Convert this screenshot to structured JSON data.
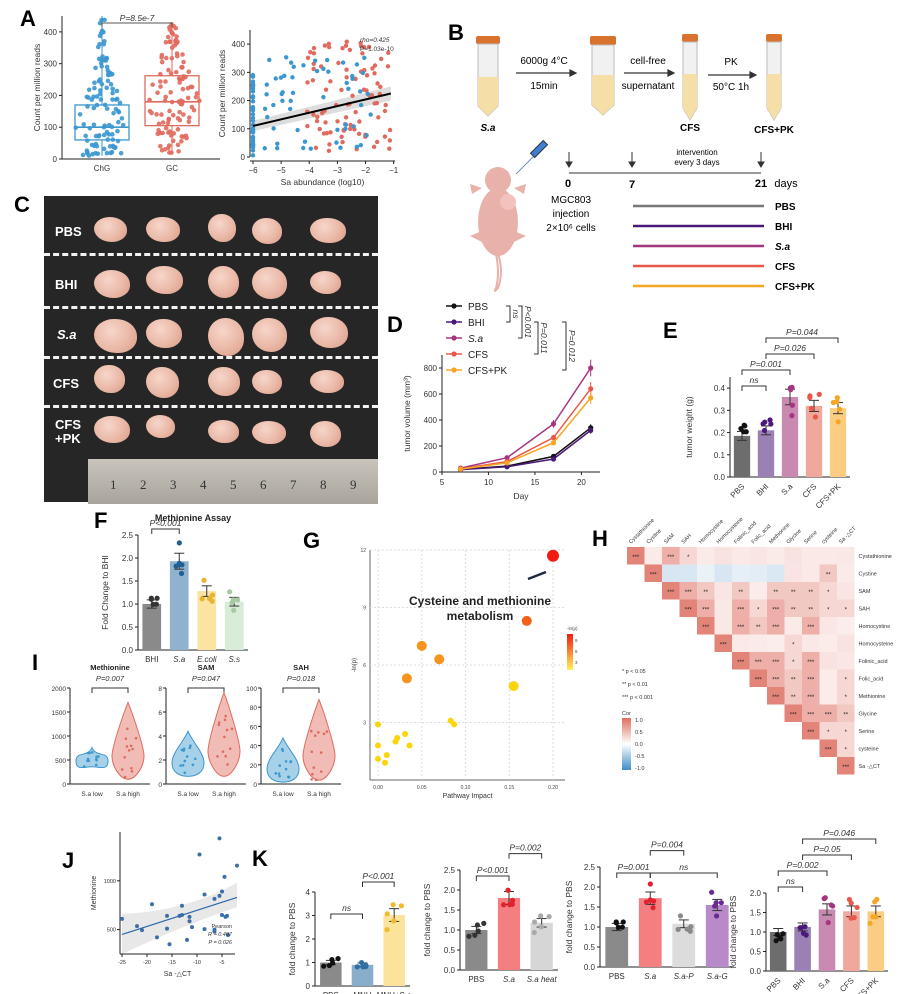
{
  "panels": {
    "A": {
      "label": "A"
    },
    "B": {
      "label": "B"
    },
    "C": {
      "label": "C"
    },
    "D": {
      "label": "D"
    },
    "E": {
      "label": "E"
    },
    "F": {
      "label": "F"
    },
    "G": {
      "label": "G"
    },
    "H": {
      "label": "H"
    },
    "I": {
      "label": "I"
    },
    "J": {
      "label": "J"
    },
    "K": {
      "label": "K"
    }
  },
  "colors": {
    "blue": "#3b97cf",
    "red": "#e06a5d",
    "pbs": "#777777",
    "bhi": "#4b1a78",
    "sa": "#a6357f",
    "cfs": "#e8584a",
    "cfspk": "#f5a623"
  },
  "panelB": {
    "step1": "6000g 4°C",
    "step1b": "15min",
    "step2": "cell-free",
    "step2b": "supernatant",
    "step3": "PK",
    "step3b": "50°C 1h",
    "tube1": "S.a",
    "tube3": "CFS",
    "tube4": "CFS+PK",
    "intervention": "intervention",
    "intervention2": "every 3 days",
    "t0": "0",
    "t7": "7",
    "t21": "21",
    "days": "days",
    "inj1": "MGC803",
    "inj2": "injection",
    "inj3": "2×10⁶ cells",
    "groups": [
      "PBS",
      "BHI",
      "S.a",
      "CFS",
      "CFS+PK"
    ]
  },
  "panelC": {
    "rows": [
      "PBS",
      "BHI",
      "S.a",
      "CFS",
      "CFS\n+PK"
    ],
    "ruler": [
      "1",
      "2",
      "3",
      "4",
      "5",
      "6",
      "7",
      "8",
      "9"
    ]
  },
  "chart_data": [
    {
      "id": "A-left",
      "type": "scatter",
      "title": "",
      "categories": [
        "ChG",
        "GC"
      ],
      "ylabel": "Count per million reads",
      "ylim": [
        0,
        450
      ],
      "yticks": [
        0,
        100,
        200,
        300,
        400
      ],
      "box": [
        {
          "name": "ChG",
          "q1": 60,
          "median": 100,
          "q3": 170,
          "min": 10,
          "max": 450
        },
        {
          "name": "GC",
          "q1": 105,
          "median": 180,
          "q3": 262,
          "min": 20,
          "max": 425
        }
      ],
      "annotation": "P=8.5e-7"
    },
    {
      "id": "A-right",
      "type": "scatter",
      "xlabel": "Sa abundance (log10)",
      "ylabel": "Count per million reads",
      "xlim": [
        -6,
        -1
      ],
      "ylim": [
        0,
        450
      ],
      "xticks": [
        -6,
        -5,
        -4,
        -3,
        -2,
        -1
      ],
      "yticks": [
        0,
        100,
        200,
        300,
        400
      ],
      "fit": {
        "x": [
          -6,
          -1.1
        ],
        "y": [
          110,
          225
        ]
      },
      "annotation": [
        "rho=0.425",
        "P=1.03e-10"
      ]
    },
    {
      "id": "D",
      "type": "line",
      "xlabel": "Day",
      "ylabel": "tumor volume (mm³)",
      "xlim": [
        5,
        22
      ],
      "ylim": [
        0,
        900
      ],
      "xticks": [
        5,
        10,
        15,
        20
      ],
      "yticks": [
        0,
        200,
        400,
        600,
        800
      ],
      "x": [
        7,
        12,
        17,
        21
      ],
      "series": [
        {
          "name": "PBS",
          "values": [
            20,
            45,
            120,
            340
          ],
          "color": "#111111",
          "marker": "circle"
        },
        {
          "name": "BHI",
          "values": [
            18,
            40,
            100,
            320
          ],
          "color": "#4b1a78",
          "marker": "square"
        },
        {
          "name": "S.a",
          "values": [
            30,
            110,
            370,
            800
          ],
          "color": "#a6357f",
          "marker": "triangle-up"
        },
        {
          "name": "CFS",
          "values": [
            25,
            80,
            265,
            640
          ],
          "color": "#e8584a",
          "marker": "triangle-down"
        },
        {
          "name": "CFS+PK",
          "values": [
            22,
            70,
            225,
            570
          ],
          "color": "#f5a623",
          "marker": "diamond"
        }
      ],
      "annotations": [
        "ns",
        "P<0.001",
        "P=0.011",
        "P=0.012"
      ]
    },
    {
      "id": "E",
      "type": "bar",
      "ylabel": "tumor weight (g)",
      "categories": [
        "PBS",
        "BHI",
        "S.a",
        "CFS",
        "CFS+PK"
      ],
      "values": [
        0.185,
        0.21,
        0.36,
        0.32,
        0.31
      ],
      "errors": [
        0.02,
        0.02,
        0.035,
        0.025,
        0.025
      ],
      "ylim": [
        0,
        0.45
      ],
      "yticks": [
        0.0,
        0.1,
        0.2,
        0.3,
        0.4
      ],
      "colors": [
        "#6d6d6d",
        "#9a80b5",
        "#c98ab2",
        "#f0a79c",
        "#fbcd82"
      ],
      "annotations": [
        {
          "text": "ns",
          "from": 0,
          "to": 1
        },
        {
          "text": "P=0.001",
          "from": 0,
          "to": 2
        },
        {
          "text": "P=0.026",
          "from": 1,
          "to": 3
        },
        {
          "text": "P=0.044",
          "from": 1,
          "to": 4
        }
      ]
    },
    {
      "id": "F",
      "type": "bar",
      "title": "Methionine Assay",
      "ylabel": "Fold Change to BHI",
      "categories": [
        "BHI",
        "S.a",
        "E.coli",
        "S.s"
      ],
      "values": [
        1.0,
        1.93,
        1.28,
        1.05
      ],
      "ylim": [
        0,
        2.5
      ],
      "yticks": [
        0.0,
        0.5,
        1.0,
        1.5,
        2.0,
        2.5
      ],
      "colors": [
        "#8a8a8a",
        "#8fb3cf",
        "#fbe3a2",
        "#d9ecd8"
      ],
      "annotations": [
        {
          "text": "P<0.001",
          "from": 0,
          "to": 1
        }
      ]
    },
    {
      "id": "G",
      "type": "scatter",
      "title": "",
      "xlabel": "Pathway Impact",
      "ylabel": "-ln(p)",
      "xlim": [
        0,
        0.2
      ],
      "ylim": [
        0,
        12
      ],
      "xticks": [
        0.0,
        0.05,
        0.1,
        0.15,
        0.2
      ],
      "yticks": [
        3,
        6,
        9,
        12
      ],
      "points": [
        {
          "x": 0.2,
          "y": 11.7,
          "size": 3
        },
        {
          "x": 0.17,
          "y": 8.3,
          "size": 2
        },
        {
          "x": 0.05,
          "y": 7.0,
          "size": 2
        },
        {
          "x": 0.07,
          "y": 6.3,
          "size": 2
        },
        {
          "x": 0.033,
          "y": 5.3,
          "size": 2
        },
        {
          "x": 0.155,
          "y": 4.9,
          "size": 2
        },
        {
          "x": 0.083,
          "y": 3.1,
          "size": 1
        },
        {
          "x": 0.087,
          "y": 2.9,
          "size": 1
        },
        {
          "x": 0.0,
          "y": 2.9,
          "size": 1
        },
        {
          "x": 0.0,
          "y": 1.8,
          "size": 1
        },
        {
          "x": 0.0,
          "y": 1.1,
          "size": 1
        },
        {
          "x": 0.01,
          "y": 1.3,
          "size": 1
        },
        {
          "x": 0.008,
          "y": 0.9,
          "size": 1
        },
        {
          "x": 0.02,
          "y": 2.0,
          "size": 1
        },
        {
          "x": 0.022,
          "y": 2.2,
          "size": 1
        },
        {
          "x": 0.031,
          "y": 2.4,
          "size": 1
        },
        {
          "x": 0.036,
          "y": 1.8,
          "size": 1
        }
      ],
      "annotation": "Cysteine and methionine metabolism",
      "legend_title": "-ln(p)",
      "legend_ticks": [
        "9",
        "6",
        "3"
      ]
    },
    {
      "id": "H",
      "type": "heatmap",
      "variables": [
        "Cystathionine",
        "Cystine",
        "SAM",
        "SAH",
        "Homocystine",
        "Homocysteine",
        "Folinic_acid",
        "Folic_acid",
        "Methionine",
        "Glycine",
        "Serine",
        "cysteine",
        "Sa -△CT"
      ],
      "legend": [
        "* p < 0.05",
        "** p < 0.01",
        "*** p < 0.001"
      ],
      "colorbar_title": "Cor",
      "colorbar_ticks": [
        "1.0",
        "0.5",
        "0.0",
        "-0.5",
        "-1.0"
      ]
    },
    {
      "id": "I",
      "type": "scatter",
      "subplots": [
        {
          "title": "Methionine",
          "p": "P=0.007",
          "ylim": [
            0,
            2000
          ],
          "yticks": [
            0,
            500,
            1000,
            1500,
            2000
          ],
          "categories": [
            "S.a low",
            "S.a high"
          ]
        },
        {
          "title": "SAM",
          "p": "P=0.047",
          "ylim": [
            0,
            8
          ],
          "yticks": [
            0,
            2,
            4,
            6,
            8
          ],
          "categories": [
            "S.a low",
            "S.a high"
          ]
        },
        {
          "title": "SAH",
          "p": "P=0.018",
          "ylim": [
            0,
            100
          ],
          "yticks": [
            0,
            20,
            40,
            60,
            80,
            100
          ],
          "categories": [
            "S.a low",
            "S.a high"
          ]
        }
      ]
    },
    {
      "id": "J",
      "type": "scatter",
      "xlabel": "Sa -△CT",
      "ylabel": "Methionine",
      "xlim": [
        -25,
        -2
      ],
      "xticks": [
        -25,
        -20,
        -15,
        -10,
        -5
      ],
      "yticks": [
        500,
        1000
      ],
      "points": [
        [
          -25,
          610
        ],
        [
          -22,
          535
        ],
        [
          -21,
          495
        ],
        [
          -19,
          760
        ],
        [
          -18,
          420
        ],
        [
          -16,
          640
        ],
        [
          -16,
          510
        ],
        [
          -15.5,
          350
        ],
        [
          -13,
          745
        ],
        [
          -13.5,
          640
        ],
        [
          -13,
          650
        ],
        [
          -11.5,
          630
        ],
        [
          -11.5,
          585
        ],
        [
          -11,
          525
        ],
        [
          -12,
          395
        ],
        [
          -9.5,
          1270
        ],
        [
          -8.5,
          860
        ],
        [
          -8.5,
          505
        ],
        [
          -6.5,
          815
        ],
        [
          -6.5,
          480
        ],
        [
          -6.5,
          500
        ],
        [
          -5.5,
          1435
        ],
        [
          -5.5,
          845
        ],
        [
          -5,
          890
        ],
        [
          -5,
          650
        ],
        [
          -4.5,
          1040
        ],
        [
          -4.3,
          630
        ],
        [
          -4,
          640
        ],
        [
          -3.8,
          445
        ],
        [
          -2,
          1155
        ]
      ],
      "fit": {
        "x": [
          -25,
          -2
        ],
        "y": [
          450,
          830
        ]
      },
      "annotation": [
        "Pearson",
        "R = 0.407",
        "P = 0.026"
      ]
    },
    {
      "id": "K1",
      "type": "bar",
      "ylabel": "fold change to PBS",
      "categories": [
        "PBS",
        "MNU",
        "MNU+S.a"
      ],
      "values": [
        1.0,
        0.9,
        3.02
      ],
      "ylim": [
        0,
        4
      ],
      "yticks": [
        0,
        1,
        2,
        3,
        4
      ],
      "colors": [
        "#8a8a8a",
        "#89aecb",
        "#fce39b"
      ],
      "annotations": [
        {
          "text": "ns",
          "from": 0,
          "to": 1
        },
        {
          "text": "P<0.001",
          "from": 1,
          "to": 2
        }
      ]
    },
    {
      "id": "K2",
      "type": "bar",
      "ylabel": "fold change to PBS",
      "categories": [
        "PBS",
        "S.a",
        "S.a heat"
      ],
      "values": [
        1.0,
        1.8,
        1.18
      ],
      "ylim": [
        0,
        2.5
      ],
      "yticks": [
        0.0,
        0.5,
        1.0,
        1.5,
        2.0,
        2.5
      ],
      "colors": [
        "#8a8a8a",
        "#f47f80",
        "#d6d6d6"
      ],
      "annotations": [
        {
          "text": "P<0.001",
          "from": 0,
          "to": 1
        },
        {
          "text": "P=0.002",
          "from": 1,
          "to": 2
        }
      ]
    },
    {
      "id": "K3",
      "type": "bar",
      "ylabel": "fold change to PBS",
      "categories": [
        "PBS",
        "S.a",
        "S.a-P",
        "S.a-G"
      ],
      "values": [
        1.0,
        1.72,
        1.08,
        1.55
      ],
      "ylim": [
        0,
        2.5
      ],
      "yticks": [
        0.0,
        0.5,
        1.0,
        1.5,
        2.0,
        2.5
      ],
      "colors": [
        "#8a8a8a",
        "#f47f80",
        "#dcdcdc",
        "#b88ac9"
      ],
      "annotations": [
        {
          "text": "P=0.001",
          "from": 0,
          "to": 1
        },
        {
          "text": "P=0.004",
          "from": 1,
          "to": 2
        },
        {
          "text": "ns",
          "from": 1,
          "to": 3
        }
      ]
    },
    {
      "id": "K4",
      "type": "bar",
      "ylabel": "fold change to PBS",
      "categories": [
        "PBS",
        "BHI",
        "S.a",
        "CFS",
        "CFS+PK"
      ],
      "values": [
        1.0,
        1.13,
        1.58,
        1.53,
        1.53
      ],
      "ylim": [
        0,
        2.0
      ],
      "yticks": [
        0.0,
        0.5,
        1.0,
        1.5,
        2.0
      ],
      "colors": [
        "#6d6d6d",
        "#9a80b5",
        "#c98ab2",
        "#f0a79c",
        "#fbcd82"
      ],
      "annotations": [
        {
          "text": "ns",
          "from": 0,
          "to": 1
        },
        {
          "text": "P=0.002",
          "from": 0,
          "to": 2
        },
        {
          "text": "P=0.05",
          "from": 1,
          "to": 3
        },
        {
          "text": "P=0.046",
          "from": 1,
          "to": 4
        }
      ]
    }
  ]
}
